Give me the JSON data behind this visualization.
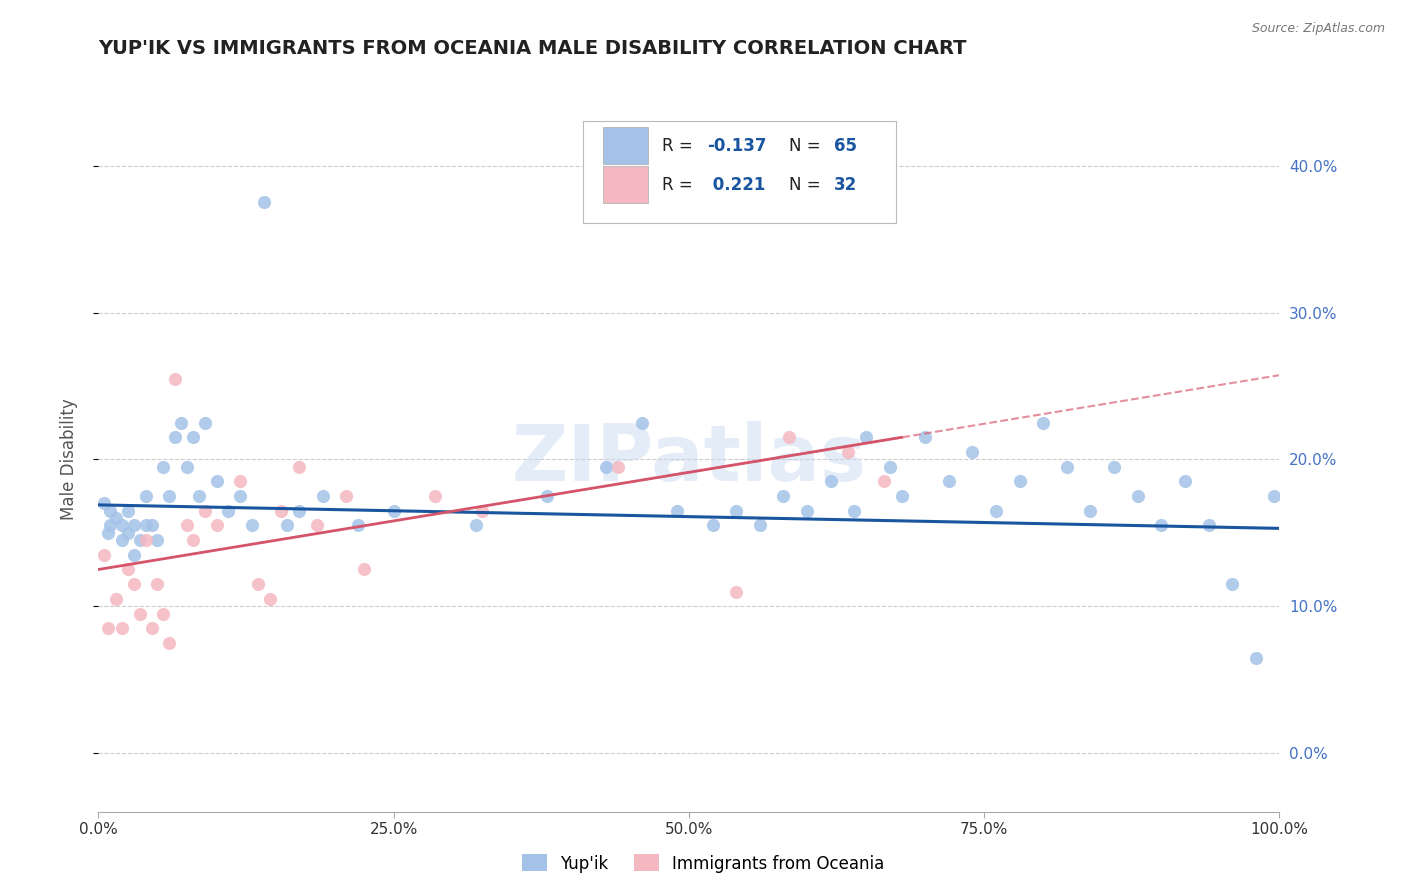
{
  "title": "YUP'IK VS IMMIGRANTS FROM OCEANIA MALE DISABILITY CORRELATION CHART",
  "source": "Source: ZipAtlas.com",
  "ylabel": "Male Disability",
  "xlim": [
    0.0,
    1.0
  ],
  "ylim": [
    -0.04,
    0.44
  ],
  "yticks": [
    0.0,
    0.1,
    0.2,
    0.3,
    0.4
  ],
  "xticks": [
    0.0,
    0.25,
    0.5,
    0.75,
    1.0
  ],
  "xtick_labels": [
    "0.0%",
    "25.0%",
    "50.0%",
    "75.0%",
    "100.0%"
  ],
  "ytick_labels_right": [
    "0.0%",
    "10.0%",
    "20.0%",
    "30.0%",
    "40.0%"
  ],
  "blue_color": "#a4c2e8",
  "pink_color": "#f4b8c1",
  "blue_line_color": "#1a56a0",
  "pink_line_color": "#d4546a",
  "legend_blue_label": "Yup'ik",
  "legend_pink_label": "Immigrants from Oceania",
  "R_blue": -0.137,
  "N_blue": 65,
  "R_pink": 0.221,
  "N_pink": 32,
  "watermark": "ZIPatlas",
  "blue_x": [
    0.005,
    0.008,
    0.01,
    0.01,
    0.015,
    0.02,
    0.02,
    0.025,
    0.025,
    0.03,
    0.03,
    0.035,
    0.04,
    0.04,
    0.045,
    0.05,
    0.055,
    0.06,
    0.065,
    0.07,
    0.075,
    0.08,
    0.085,
    0.09,
    0.1,
    0.11,
    0.12,
    0.13,
    0.14,
    0.16,
    0.17,
    0.19,
    0.22,
    0.25,
    0.32,
    0.38,
    0.43,
    0.46,
    0.49,
    0.52,
    0.54,
    0.56,
    0.58,
    0.6,
    0.62,
    0.64,
    0.65,
    0.67,
    0.68,
    0.7,
    0.72,
    0.74,
    0.76,
    0.78,
    0.8,
    0.82,
    0.84,
    0.86,
    0.88,
    0.9,
    0.92,
    0.94,
    0.96,
    0.98,
    0.995
  ],
  "blue_y": [
    0.17,
    0.15,
    0.165,
    0.155,
    0.16,
    0.155,
    0.145,
    0.165,
    0.15,
    0.155,
    0.135,
    0.145,
    0.155,
    0.175,
    0.155,
    0.145,
    0.195,
    0.175,
    0.215,
    0.225,
    0.195,
    0.215,
    0.175,
    0.225,
    0.185,
    0.165,
    0.175,
    0.155,
    0.375,
    0.155,
    0.165,
    0.175,
    0.155,
    0.165,
    0.155,
    0.175,
    0.195,
    0.225,
    0.165,
    0.155,
    0.165,
    0.155,
    0.175,
    0.165,
    0.185,
    0.165,
    0.215,
    0.195,
    0.175,
    0.215,
    0.185,
    0.205,
    0.165,
    0.185,
    0.225,
    0.195,
    0.165,
    0.195,
    0.175,
    0.155,
    0.185,
    0.155,
    0.115,
    0.065,
    0.175
  ],
  "pink_x": [
    0.005,
    0.008,
    0.015,
    0.02,
    0.025,
    0.03,
    0.035,
    0.04,
    0.045,
    0.05,
    0.055,
    0.06,
    0.065,
    0.075,
    0.08,
    0.09,
    0.1,
    0.12,
    0.135,
    0.145,
    0.155,
    0.17,
    0.185,
    0.21,
    0.225,
    0.285,
    0.325,
    0.44,
    0.54,
    0.585,
    0.635,
    0.665
  ],
  "pink_y": [
    0.135,
    0.085,
    0.105,
    0.085,
    0.125,
    0.115,
    0.095,
    0.145,
    0.085,
    0.115,
    0.095,
    0.075,
    0.255,
    0.155,
    0.145,
    0.165,
    0.155,
    0.185,
    0.115,
    0.105,
    0.165,
    0.195,
    0.155,
    0.175,
    0.125,
    0.175,
    0.165,
    0.195,
    0.11,
    0.215,
    0.205,
    0.185
  ]
}
